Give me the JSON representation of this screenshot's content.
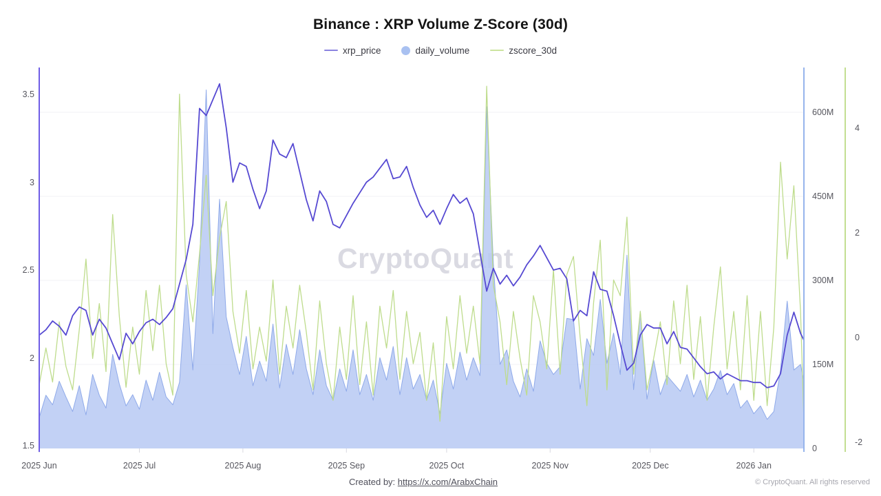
{
  "header": {
    "title": "Binance : XRP Volume Z-Score (30d)"
  },
  "legend": [
    {
      "label": "xrp_price",
      "marker": "line",
      "color": "#8a82e0"
    },
    {
      "label": "daily_volume",
      "marker": "circle",
      "color": "#a9c1f1"
    },
    {
      "label": "zscore_30d",
      "marker": "line",
      "color": "#cce49e"
    }
  ],
  "watermark_text": "CryptoQuant",
  "footer": {
    "created_by_label": "Created by: ",
    "created_by_link": "https://x.com/ArabxChain",
    "copyright": "© CryptoQuant. All rights reserved"
  },
  "chart_data": {
    "type": "line",
    "title": "Binance : XRP Volume Z-Score (30d)",
    "x_unit": "days since 2025-06-01",
    "x_range": [
      0,
      229
    ],
    "grid": "horizontal-faint",
    "legend_position": "top-center",
    "x_ticks": [
      {
        "label": "2025 Jun",
        "day": 0
      },
      {
        "label": "2025 Jul",
        "day": 30
      },
      {
        "label": "2025 Aug",
        "day": 61
      },
      {
        "label": "2025 Sep",
        "day": 92
      },
      {
        "label": "2025 Oct",
        "day": 122
      },
      {
        "label": "2025 Nov",
        "day": 153
      },
      {
        "label": "2025 Dec",
        "day": 183
      },
      {
        "label": "2026 Jan",
        "day": 214
      }
    ],
    "axes": {
      "price": {
        "side": "left",
        "color": "#6e5ce6",
        "range": [
          1.5,
          3.6
        ],
        "ticks": [
          {
            "label": "3.5",
            "value": 3.5
          },
          {
            "label": "3",
            "value": 3
          },
          {
            "label": "2.5",
            "value": 2.5
          },
          {
            "label": "2",
            "value": 2
          },
          {
            "label": "1.5",
            "value": 1.5
          }
        ]
      },
      "volume": {
        "side": "right",
        "color": "#96b4ec",
        "range": [
          0,
          660
        ],
        "unit": "M",
        "ticks": [
          {
            "label": "600M",
            "value": 600
          },
          {
            "label": "450M",
            "value": 450
          },
          {
            "label": "300M",
            "value": 300
          },
          {
            "label": "150M",
            "value": 150
          },
          {
            "label": "0",
            "value": 0
          }
        ]
      },
      "zscore": {
        "side": "far-right",
        "color": "#c2de91",
        "range": [
          -2.2,
          5
        ],
        "ticks": [
          {
            "label": "4",
            "value": 4
          },
          {
            "label": "2",
            "value": 2
          },
          {
            "label": "0",
            "value": 0
          },
          {
            "label": "-2",
            "value": -2
          }
        ]
      }
    },
    "days": [
      0,
      2,
      4,
      6,
      8,
      10,
      12,
      14,
      16,
      18,
      20,
      22,
      24,
      26,
      28,
      30,
      32,
      34,
      36,
      38,
      40,
      42,
      44,
      46,
      48,
      50,
      52,
      54,
      56,
      58,
      60,
      62,
      64,
      66,
      68,
      70,
      72,
      74,
      76,
      78,
      80,
      82,
      84,
      86,
      88,
      90,
      92,
      94,
      96,
      98,
      100,
      102,
      104,
      106,
      108,
      110,
      112,
      114,
      116,
      118,
      120,
      122,
      124,
      126,
      128,
      130,
      132,
      134,
      136,
      138,
      140,
      142,
      144,
      146,
      148,
      150,
      152,
      154,
      156,
      158,
      160,
      162,
      164,
      166,
      168,
      170,
      172,
      174,
      176,
      178,
      180,
      182,
      184,
      186,
      188,
      190,
      192,
      194,
      196,
      198,
      200,
      202,
      204,
      206,
      208,
      210,
      212,
      214,
      216,
      218,
      220,
      222,
      224,
      226,
      228,
      229
    ],
    "series": [
      {
        "name": "xrp_price",
        "type": "line",
        "axis": "price",
        "color": "#5649d2",
        "values": [
          2.13,
          2.16,
          2.21,
          2.18,
          2.13,
          2.24,
          2.29,
          2.27,
          2.13,
          2.22,
          2.17,
          2.08,
          1.99,
          2.14,
          2.08,
          2.15,
          2.2,
          2.22,
          2.19,
          2.23,
          2.28,
          2.42,
          2.56,
          2.76,
          3.42,
          3.38,
          3.47,
          3.56,
          3.31,
          3.0,
          3.11,
          3.09,
          2.96,
          2.85,
          2.95,
          3.24,
          3.16,
          3.14,
          3.22,
          3.06,
          2.9,
          2.78,
          2.95,
          2.89,
          2.76,
          2.74,
          2.81,
          2.88,
          2.94,
          3.0,
          3.03,
          3.08,
          3.13,
          3.02,
          3.03,
          3.09,
          2.97,
          2.87,
          2.8,
          2.84,
          2.76,
          2.85,
          2.93,
          2.88,
          2.91,
          2.82,
          2.6,
          2.38,
          2.51,
          2.42,
          2.47,
          2.41,
          2.46,
          2.53,
          2.58,
          2.64,
          2.57,
          2.5,
          2.51,
          2.45,
          2.21,
          2.27,
          2.24,
          2.49,
          2.39,
          2.38,
          2.24,
          2.08,
          1.93,
          1.97,
          2.13,
          2.19,
          2.17,
          2.17,
          2.08,
          2.15,
          2.06,
          2.05,
          2.0,
          1.95,
          1.91,
          1.92,
          1.88,
          1.91,
          1.89,
          1.87,
          1.87,
          1.86,
          1.86,
          1.83,
          1.84,
          1.91,
          2.13,
          2.26,
          2.14,
          2.1
        ]
      },
      {
        "name": "daily_volume",
        "type": "area",
        "axis": "volume",
        "fill": "#b7c9f3",
        "stroke": "#8ea9e9",
        "values_unit": "millions",
        "values": [
          55,
          95,
          78,
          120,
          92,
          66,
          112,
          60,
          132,
          95,
          72,
          168,
          115,
          76,
          96,
          70,
          122,
          86,
          136,
          92,
          78,
          118,
          292,
          140,
          330,
          640,
          205,
          445,
          235,
          180,
          132,
          200,
          112,
          156,
          120,
          222,
          108,
          186,
          132,
          212,
          142,
          96,
          176,
          112,
          86,
          142,
          102,
          176,
          96,
          132,
          86,
          162,
          122,
          182,
          96,
          162,
          106,
          132,
          86,
          122,
          62,
          152,
          106,
          172,
          122,
          162,
          130,
          610,
          330,
          150,
          176,
          120,
          92,
          142,
          102,
          192,
          152,
          132,
          146,
          232,
          230,
          106,
          196,
          166,
          266,
          152,
          206,
          132,
          345,
          105,
          245,
          88,
          158,
          96,
          130,
          116,
          102,
          132,
          92,
          122,
          86,
          106,
          139,
          96,
          116,
          72,
          86,
          62,
          76,
          52,
          66,
          140,
          263,
          140,
          150,
          120
        ]
      },
      {
        "name": "zscore_30d",
        "type": "line",
        "axis": "zscore",
        "color": "#bedc8c",
        "values": [
          -0.9,
          -0.2,
          -0.85,
          0.3,
          -0.55,
          -1.0,
          0.15,
          1.5,
          -0.4,
          0.65,
          -0.65,
          2.35,
          0.4,
          -0.95,
          0.2,
          -0.7,
          0.9,
          -0.25,
          1.0,
          -0.5,
          -1.1,
          4.65,
          1.2,
          0.3,
          1.6,
          3.1,
          0.8,
          1.9,
          2.6,
          0.5,
          -0.3,
          0.9,
          -0.6,
          0.2,
          -0.45,
          1.1,
          -0.7,
          0.6,
          -0.2,
          1.0,
          0.1,
          -1.0,
          0.7,
          -0.5,
          -1.2,
          0.2,
          -0.8,
          0.8,
          -0.9,
          0.3,
          -1.1,
          0.6,
          -0.2,
          0.9,
          -0.8,
          0.5,
          -0.5,
          0.1,
          -1.2,
          -0.1,
          -1.6,
          0.4,
          -0.6,
          0.8,
          -0.3,
          0.6,
          -0.5,
          4.8,
          1.0,
          0.3,
          -0.9,
          0.5,
          -0.4,
          -1.1,
          0.8,
          0.3,
          -0.6,
          1.3,
          -0.7,
          1.2,
          1.55,
          0.0,
          -1.3,
          0.66,
          1.86,
          -1.0,
          1.1,
          0.8,
          2.3,
          -0.7,
          0.5,
          -1.0,
          -0.4,
          0.3,
          -0.9,
          0.7,
          -0.5,
          1.0,
          -0.8,
          0.4,
          -1.2,
          0.2,
          1.35,
          -0.6,
          0.5,
          -1.0,
          0.8,
          -1.2,
          0.5,
          -1.3,
          0.2,
          3.35,
          1.5,
          2.9,
          0.5,
          -1.6
        ]
      }
    ]
  }
}
